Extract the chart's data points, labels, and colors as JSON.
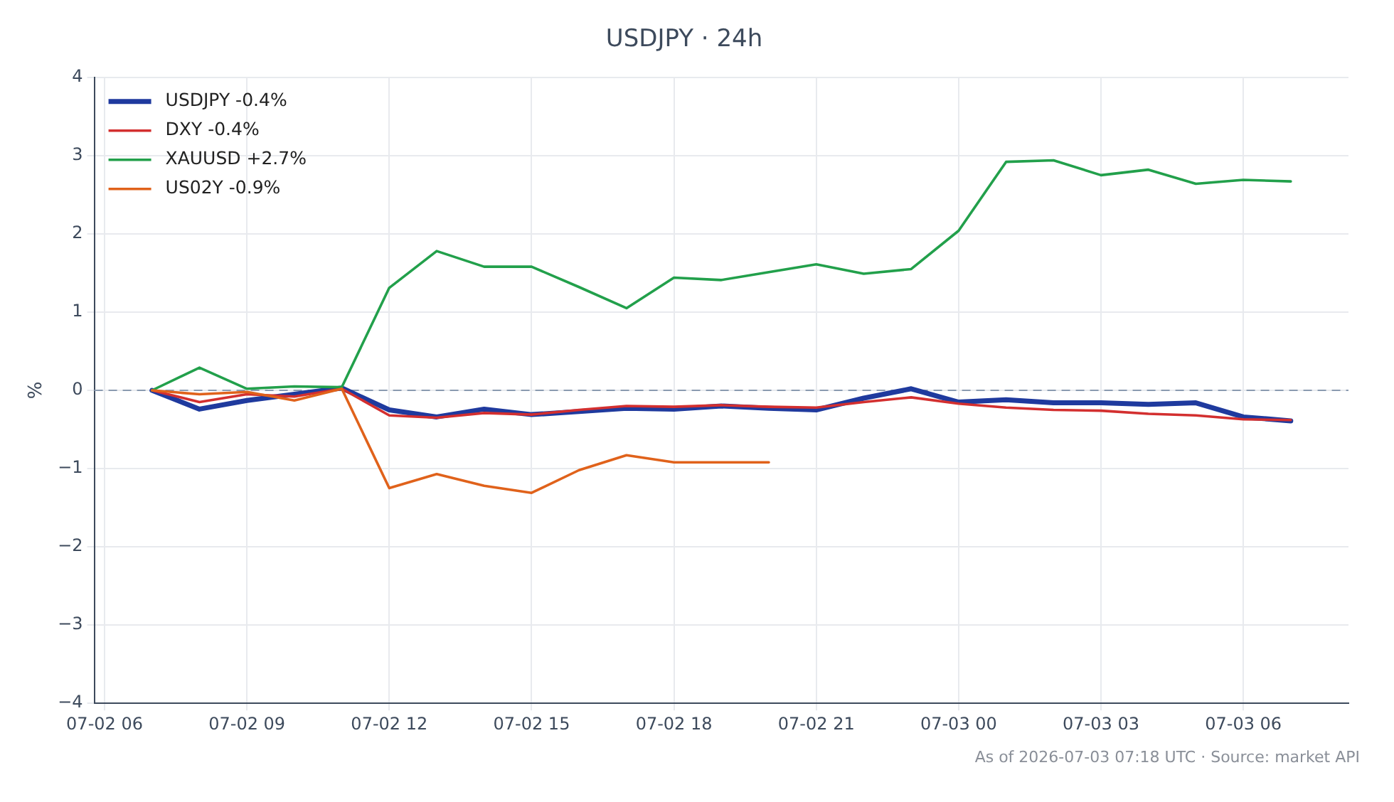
{
  "chart_data": {
    "type": "line",
    "title": "USDJPY · 24h",
    "ylabel": "%",
    "x": [
      "2026-07-02T07:00",
      "2026-07-02T08:00",
      "2026-07-02T09:00",
      "2026-07-02T10:00",
      "2026-07-02T11:00",
      "2026-07-02T12:00",
      "2026-07-02T13:00",
      "2026-07-02T14:00",
      "2026-07-02T15:00",
      "2026-07-02T16:00",
      "2026-07-02T17:00",
      "2026-07-02T18:00",
      "2026-07-02T19:00",
      "2026-07-02T20:00",
      "2026-07-02T21:00",
      "2026-07-02T22:00",
      "2026-07-02T23:00",
      "2026-07-03T00:00",
      "2026-07-03T01:00",
      "2026-07-03T02:00",
      "2026-07-03T03:00",
      "2026-07-03T04:00",
      "2026-07-03T05:00",
      "2026-07-03T06:00",
      "2026-07-03T07:00"
    ],
    "series": [
      {
        "name": "USDJPY -0.4%",
        "color": "#1f3a9e",
        "values": [
          0,
          -0.24,
          -0.13,
          -0.05,
          0.03,
          -0.25,
          -0.34,
          -0.24,
          -0.31,
          -0.27,
          -0.23,
          -0.24,
          -0.2,
          -0.23,
          -0.25,
          -0.1,
          0.02,
          -0.15,
          -0.12,
          -0.16,
          -0.16,
          -0.18,
          -0.16,
          -0.34,
          -0.39
        ]
      },
      {
        "name": "DXY -0.4%",
        "color": "#d32f2f",
        "values": [
          0,
          -0.15,
          -0.05,
          -0.08,
          0.02,
          -0.32,
          -0.35,
          -0.29,
          -0.31,
          -0.25,
          -0.2,
          -0.21,
          -0.19,
          -0.21,
          -0.22,
          -0.15,
          -0.09,
          -0.17,
          -0.22,
          -0.25,
          -0.26,
          -0.3,
          -0.32,
          -0.37,
          -0.38
        ]
      },
      {
        "name": "XAUUSD +2.7%",
        "color": "#22a04b",
        "values": [
          0,
          0.29,
          0.02,
          0.05,
          0.04,
          1.31,
          1.78,
          1.58,
          1.58,
          1.32,
          1.05,
          1.44,
          1.41,
          1.51,
          1.61,
          1.49,
          1.55,
          2.04,
          2.92,
          2.94,
          2.75,
          2.82,
          2.64,
          2.69,
          2.67
        ]
      },
      {
        "name": "US02Y -0.9%",
        "color": "#e0621b",
        "values": [
          0,
          -0.05,
          -0.02,
          -0.13,
          0.02,
          -1.25,
          -1.07,
          -1.22,
          -1.31,
          -1.02,
          -0.83,
          -0.92,
          -0.92,
          -0.92,
          null,
          null,
          null,
          null,
          null,
          null,
          null,
          null,
          null,
          null,
          null
        ]
      }
    ],
    "xlim": [
      "2026-07-02T05:47",
      "2026-07-03T08:13"
    ],
    "xticks": [
      {
        "value": "2026-07-02T06:00",
        "label": "07-02 06"
      },
      {
        "value": "2026-07-02T09:00",
        "label": "07-02 09"
      },
      {
        "value": "2026-07-02T12:00",
        "label": "07-02 12"
      },
      {
        "value": "2026-07-02T15:00",
        "label": "07-02 15"
      },
      {
        "value": "2026-07-02T18:00",
        "label": "07-02 18"
      },
      {
        "value": "2026-07-02T21:00",
        "label": "07-02 21"
      },
      {
        "value": "2026-07-03T00:00",
        "label": "07-03 00"
      },
      {
        "value": "2026-07-03T03:00",
        "label": "07-03 03"
      },
      {
        "value": "2026-07-03T06:00",
        "label": "07-03 06"
      }
    ],
    "ylim": [
      -4,
      4
    ],
    "yticks": [
      {
        "value": -4,
        "label": "−4"
      },
      {
        "value": -3,
        "label": "−3"
      },
      {
        "value": -2,
        "label": "−2"
      },
      {
        "value": -1,
        "label": "−1"
      },
      0,
      1,
      2,
      3,
      4
    ],
    "ref_lines": [
      {
        "axis": "y",
        "value": 0,
        "color": "#8a9ab0",
        "line_style": "dashed"
      }
    ],
    "grid": true,
    "legend": "top left",
    "marker": "none",
    "line_style": "solid",
    "annotations": [
      "As of 2026-07-03 07:18 UTC · Source: market API"
    ]
  }
}
